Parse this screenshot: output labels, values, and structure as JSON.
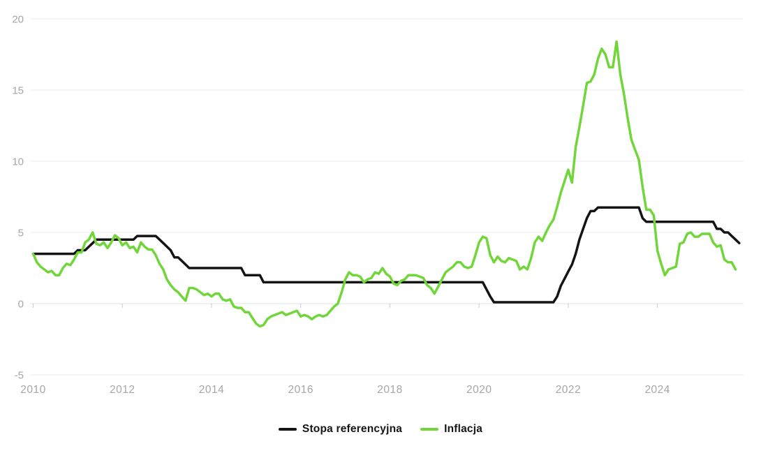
{
  "page": {
    "background": "#ffffff"
  },
  "legend": {
    "items": [
      {
        "label": "Stopa referencyjna"
      },
      {
        "label": "Inflacja"
      }
    ]
  },
  "chart_data": {
    "type": "line",
    "title": "",
    "xlabel": "",
    "ylabel": "",
    "x_axis": {
      "start_year": 2010,
      "start_month": 1,
      "frequency": "monthly",
      "ticks": [
        2010,
        2012,
        2014,
        2016,
        2018,
        2020,
        2022,
        2024
      ]
    },
    "y_axis": {
      "ticks": [
        -5,
        0,
        5,
        10,
        15,
        20
      ],
      "range": [
        -5,
        20
      ]
    },
    "grid": "horizontal",
    "legend_position": "bottom-center",
    "colors": {
      "background": "#ffffff",
      "grid": "#ececec",
      "zero_axis": "#e0e0e0",
      "tick": "#cccccc",
      "axis_label": "#a6a6a6",
      "stopa_referencyjna": "#141414",
      "inflacja": "#70d639"
    },
    "series": [
      {
        "name": "Stopa referencyjna",
        "color": "#141414",
        "values": [
          3.5,
          3.5,
          3.5,
          3.5,
          3.5,
          3.5,
          3.5,
          3.5,
          3.5,
          3.5,
          3.5,
          3.5,
          3.75,
          3.75,
          3.75,
          4.0,
          4.25,
          4.5,
          4.5,
          4.5,
          4.5,
          4.5,
          4.5,
          4.5,
          4.5,
          4.5,
          4.5,
          4.5,
          4.75,
          4.75,
          4.75,
          4.75,
          4.75,
          4.75,
          4.5,
          4.25,
          4.0,
          3.75,
          3.25,
          3.25,
          3.0,
          2.75,
          2.5,
          2.5,
          2.5,
          2.5,
          2.5,
          2.5,
          2.5,
          2.5,
          2.5,
          2.5,
          2.5,
          2.5,
          2.5,
          2.5,
          2.5,
          2.0,
          2.0,
          2.0,
          2.0,
          2.0,
          1.5,
          1.5,
          1.5,
          1.5,
          1.5,
          1.5,
          1.5,
          1.5,
          1.5,
          1.5,
          1.5,
          1.5,
          1.5,
          1.5,
          1.5,
          1.5,
          1.5,
          1.5,
          1.5,
          1.5,
          1.5,
          1.5,
          1.5,
          1.5,
          1.5,
          1.5,
          1.5,
          1.5,
          1.5,
          1.5,
          1.5,
          1.5,
          1.5,
          1.5,
          1.5,
          1.5,
          1.5,
          1.5,
          1.5,
          1.5,
          1.5,
          1.5,
          1.5,
          1.5,
          1.5,
          1.5,
          1.5,
          1.5,
          1.5,
          1.5,
          1.5,
          1.5,
          1.5,
          1.5,
          1.5,
          1.5,
          1.5,
          1.5,
          1.5,
          1.5,
          1.0,
          0.5,
          0.1,
          0.1,
          0.1,
          0.1,
          0.1,
          0.1,
          0.1,
          0.1,
          0.1,
          0.1,
          0.1,
          0.1,
          0.1,
          0.1,
          0.1,
          0.1,
          0.1,
          0.5,
          1.25,
          1.75,
          2.25,
          2.75,
          3.5,
          4.5,
          5.25,
          6.0,
          6.5,
          6.5,
          6.75,
          6.75,
          6.75,
          6.75,
          6.75,
          6.75,
          6.75,
          6.75,
          6.75,
          6.75,
          6.75,
          6.75,
          6.0,
          5.75,
          5.75,
          5.75,
          5.75,
          5.75,
          5.75,
          5.75,
          5.75,
          5.75,
          5.75,
          5.75,
          5.75,
          5.75,
          5.75,
          5.75,
          5.75,
          5.75,
          5.75,
          5.75,
          5.25,
          5.25,
          5.0,
          5.0,
          4.75,
          4.5,
          4.25
        ]
      },
      {
        "name": "Inflacja",
        "color": "#70d639",
        "values": [
          3.5,
          2.9,
          2.6,
          2.4,
          2.2,
          2.3,
          2.0,
          2.0,
          2.5,
          2.8,
          2.7,
          3.1,
          3.6,
          3.6,
          4.3,
          4.5,
          5.0,
          4.2,
          4.1,
          4.3,
          3.9,
          4.3,
          4.8,
          4.6,
          4.1,
          4.3,
          3.9,
          4.0,
          3.6,
          4.3,
          4.0,
          3.8,
          3.8,
          3.4,
          2.8,
          2.4,
          1.7,
          1.3,
          1.0,
          0.8,
          0.5,
          0.2,
          1.1,
          1.1,
          1.0,
          0.8,
          0.6,
          0.7,
          0.5,
          0.7,
          0.7,
          0.3,
          0.2,
          0.3,
          -0.2,
          -0.3,
          -0.3,
          -0.6,
          -0.6,
          -1.0,
          -1.4,
          -1.6,
          -1.5,
          -1.1,
          -0.9,
          -0.8,
          -0.7,
          -0.6,
          -0.8,
          -0.7,
          -0.6,
          -0.5,
          -0.9,
          -0.8,
          -0.9,
          -1.1,
          -0.9,
          -0.8,
          -0.9,
          -0.8,
          -0.5,
          -0.2,
          0.0,
          0.8,
          1.7,
          2.2,
          2.0,
          2.0,
          1.9,
          1.5,
          1.7,
          1.8,
          2.2,
          2.1,
          2.5,
          2.1,
          1.9,
          1.4,
          1.3,
          1.6,
          1.7,
          2.0,
          2.0,
          2.0,
          1.9,
          1.8,
          1.3,
          1.1,
          0.7,
          1.2,
          1.7,
          2.2,
          2.4,
          2.6,
          2.9,
          2.9,
          2.6,
          2.5,
          2.6,
          3.4,
          4.3,
          4.7,
          4.6,
          3.4,
          2.9,
          3.3,
          3.0,
          2.9,
          3.2,
          3.1,
          3.0,
          2.4,
          2.6,
          2.4,
          3.2,
          4.3,
          4.7,
          4.4,
          5.0,
          5.5,
          5.9,
          6.8,
          7.8,
          8.6,
          9.4,
          8.5,
          11.0,
          12.4,
          13.9,
          15.5,
          15.6,
          16.1,
          17.2,
          17.9,
          17.5,
          16.6,
          16.6,
          18.4,
          16.1,
          14.7,
          13.0,
          11.5,
          10.8,
          10.1,
          8.2,
          6.6,
          6.6,
          6.2,
          3.7,
          2.8,
          2.0,
          2.4,
          2.5,
          2.6,
          4.2,
          4.3,
          4.9,
          5.0,
          4.7,
          4.7,
          4.9,
          4.9,
          4.9,
          4.3,
          4.0,
          4.1,
          3.1,
          2.9,
          2.9,
          2.4
        ]
      }
    ]
  }
}
